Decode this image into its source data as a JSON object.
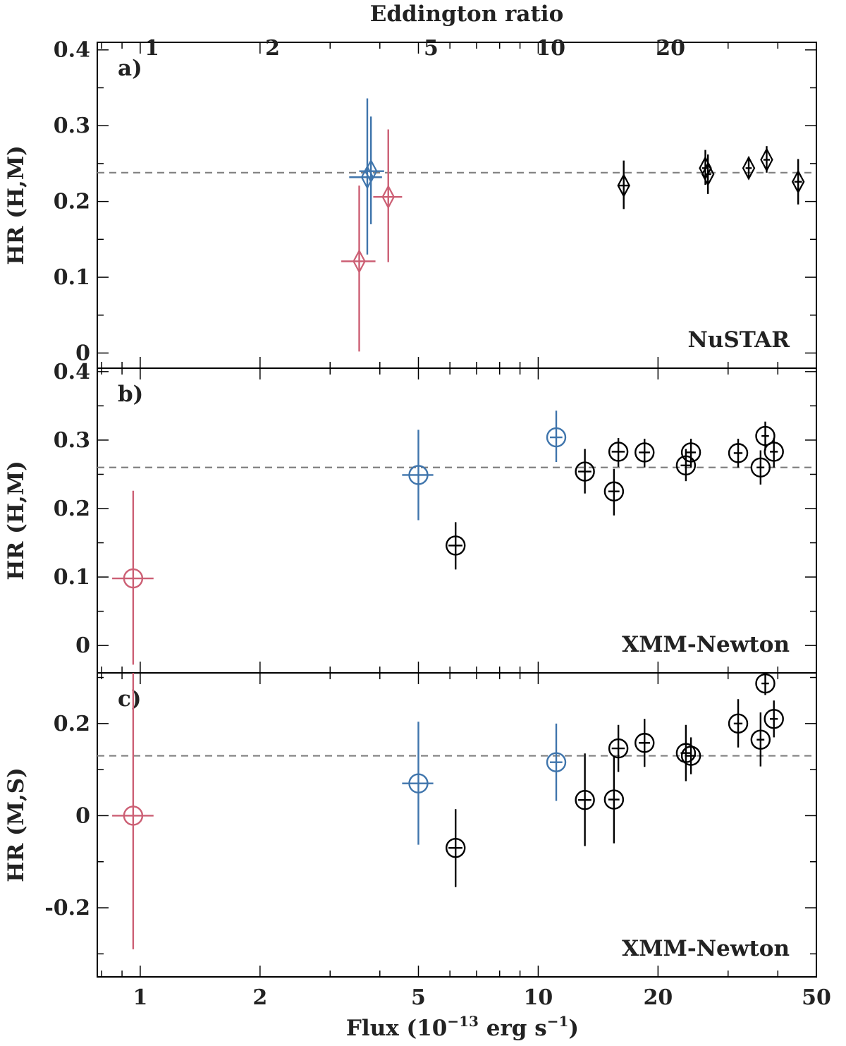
{
  "chart_data": {
    "type": "scatter",
    "x_axis": {
      "label": "Flux (10",
      "label_exp": "−13",
      "label_tail": " erg s",
      "label_tail_exp": "−1",
      "label_close": ")",
      "scale": "log",
      "range": [
        0.78,
        50
      ],
      "ticks": [
        1,
        2,
        5,
        10,
        20,
        50
      ],
      "tick_labels": [
        "1",
        "2",
        "5",
        "10",
        "20",
        "50"
      ]
    },
    "top_axis": {
      "label": "Eddington ratio",
      "scale": "log",
      "tick_positions_flux": [
        1.07,
        2.15,
        5.38,
        10.75,
        21.5
      ],
      "tick_labels": [
        "1",
        "2",
        "5",
        "10",
        "20"
      ]
    },
    "reference_lines": {
      "dashed_color": "#808080"
    },
    "colors": {
      "black": "#000000",
      "blue": "#3f75ac",
      "red": "#cc5f74"
    },
    "panels": [
      {
        "letter": "a)",
        "title": "NuSTAR",
        "ylabel": "HR (H,M)",
        "ylim": [
          -0.02,
          0.41
        ],
        "yticks": [
          0,
          0.1,
          0.2,
          0.3,
          0.4
        ],
        "ytick_labels": [
          "0",
          "0.1",
          "0.2",
          "0.3",
          "0.4"
        ],
        "ref_y": 0.238,
        "marker": "diamond",
        "points": [
          {
            "x": 3.55,
            "xlo": 3.2,
            "xhi": 3.9,
            "y": 0.121,
            "ylo": 0.002,
            "yhi": 0.221,
            "color": "red"
          },
          {
            "x": 4.2,
            "xlo": 3.85,
            "xhi": 4.55,
            "y": 0.206,
            "ylo": 0.12,
            "yhi": 0.295,
            "color": "red"
          },
          {
            "x": 3.72,
            "xlo": 3.35,
            "xhi": 4.05,
            "y": 0.232,
            "ylo": 0.13,
            "yhi": 0.336,
            "color": "blue"
          },
          {
            "x": 3.8,
            "xlo": 3.55,
            "xhi": 4.1,
            "y": 0.24,
            "ylo": 0.17,
            "yhi": 0.312,
            "color": "blue"
          },
          {
            "x": 16.4,
            "xlo": 15.9,
            "xhi": 16.9,
            "y": 0.221,
            "ylo": 0.19,
            "yhi": 0.254,
            "color": "black"
          },
          {
            "x": 26.3,
            "xlo": 25.8,
            "xhi": 26.8,
            "y": 0.244,
            "ylo": 0.222,
            "yhi": 0.268,
            "color": "black"
          },
          {
            "x": 26.7,
            "xlo": 26.2,
            "xhi": 27.2,
            "y": 0.236,
            "ylo": 0.21,
            "yhi": 0.262,
            "color": "black"
          },
          {
            "x": 33.8,
            "xlo": 33.2,
            "xhi": 34.4,
            "y": 0.244,
            "ylo": 0.23,
            "yhi": 0.259,
            "color": "black"
          },
          {
            "x": 37.5,
            "xlo": 36.8,
            "xhi": 38.2,
            "y": 0.255,
            "ylo": 0.238,
            "yhi": 0.273,
            "color": "black"
          },
          {
            "x": 45.0,
            "xlo": 44.0,
            "xhi": 46.0,
            "y": 0.226,
            "ylo": 0.196,
            "yhi": 0.256,
            "color": "black"
          }
        ]
      },
      {
        "letter": "b)",
        "title": "XMM-Newton",
        "ylabel": "HR (H,M)",
        "ylim": [
          -0.04,
          0.405
        ],
        "yticks": [
          0,
          0.1,
          0.2,
          0.3,
          0.4
        ],
        "ytick_labels": [
          "0",
          "0.1",
          "0.2",
          "0.3",
          "0.4"
        ],
        "ref_y": 0.26,
        "marker": "circle",
        "points": [
          {
            "x": 0.96,
            "xlo": 0.85,
            "xhi": 1.08,
            "y": 0.098,
            "ylo": -0.028,
            "yhi": 0.226,
            "color": "red"
          },
          {
            "x": 5.0,
            "xlo": 4.55,
            "xhi": 5.45,
            "y": 0.249,
            "ylo": 0.183,
            "yhi": 0.315,
            "color": "blue"
          },
          {
            "x": 11.1,
            "xlo": 10.7,
            "xhi": 11.5,
            "y": 0.304,
            "ylo": 0.268,
            "yhi": 0.343,
            "color": "blue"
          },
          {
            "x": 6.2,
            "xlo": 5.95,
            "xhi": 6.45,
            "y": 0.146,
            "ylo": 0.111,
            "yhi": 0.18,
            "color": "black"
          },
          {
            "x": 13.1,
            "xlo": 12.6,
            "xhi": 13.6,
            "y": 0.254,
            "ylo": 0.222,
            "yhi": 0.287,
            "color": "black"
          },
          {
            "x": 15.5,
            "xlo": 15.0,
            "xhi": 16.0,
            "y": 0.225,
            "ylo": 0.19,
            "yhi": 0.258,
            "color": "black"
          },
          {
            "x": 15.9,
            "xlo": 15.3,
            "xhi": 16.5,
            "y": 0.283,
            "ylo": 0.261,
            "yhi": 0.303,
            "color": "black"
          },
          {
            "x": 18.5,
            "xlo": 17.9,
            "xhi": 19.1,
            "y": 0.282,
            "ylo": 0.26,
            "yhi": 0.302,
            "color": "black"
          },
          {
            "x": 23.5,
            "xlo": 22.8,
            "xhi": 24.2,
            "y": 0.263,
            "ylo": 0.24,
            "yhi": 0.287,
            "color": "black"
          },
          {
            "x": 24.2,
            "xlo": 23.5,
            "xhi": 24.9,
            "y": 0.282,
            "ylo": 0.26,
            "yhi": 0.302,
            "color": "black"
          },
          {
            "x": 31.8,
            "xlo": 31.0,
            "xhi": 32.6,
            "y": 0.281,
            "ylo": 0.26,
            "yhi": 0.302,
            "color": "black"
          },
          {
            "x": 36.2,
            "xlo": 35.4,
            "xhi": 37.0,
            "y": 0.26,
            "ylo": 0.235,
            "yhi": 0.285,
            "color": "black"
          },
          {
            "x": 37.2,
            "xlo": 36.4,
            "xhi": 38.0,
            "y": 0.306,
            "ylo": 0.285,
            "yhi": 0.327,
            "color": "black"
          },
          {
            "x": 39.1,
            "xlo": 38.2,
            "xhi": 40.0,
            "y": 0.283,
            "ylo": 0.26,
            "yhi": 0.303,
            "color": "black"
          }
        ]
      },
      {
        "letter": "c)",
        "title": "XMM-Newton",
        "ylabel": "HR (M,S)",
        "ylim": [
          -0.35,
          0.31
        ],
        "yticks": [
          -0.2,
          0,
          0.2
        ],
        "ytick_labels": [
          "-0.2",
          "0",
          "0.2"
        ],
        "ref_y": 0.13,
        "marker": "circle",
        "points": [
          {
            "x": 0.96,
            "xlo": 0.85,
            "xhi": 1.08,
            "y": 0.0,
            "ylo": -0.29,
            "yhi": 0.31,
            "color": "red"
          },
          {
            "x": 5.0,
            "xlo": 4.55,
            "xhi": 5.45,
            "y": 0.07,
            "ylo": -0.063,
            "yhi": 0.204,
            "color": "blue"
          },
          {
            "x": 11.1,
            "xlo": 10.7,
            "xhi": 11.5,
            "y": 0.116,
            "ylo": 0.032,
            "yhi": 0.2,
            "color": "blue"
          },
          {
            "x": 6.2,
            "xlo": 5.95,
            "xhi": 6.45,
            "y": -0.07,
            "ylo": -0.155,
            "yhi": 0.014,
            "color": "black"
          },
          {
            "x": 13.1,
            "xlo": 12.6,
            "xhi": 13.6,
            "y": 0.034,
            "ylo": -0.066,
            "yhi": 0.135,
            "color": "black"
          },
          {
            "x": 15.5,
            "xlo": 15.0,
            "xhi": 16.0,
            "y": 0.035,
            "ylo": -0.06,
            "yhi": 0.13,
            "color": "black"
          },
          {
            "x": 15.9,
            "xlo": 15.3,
            "xhi": 16.5,
            "y": 0.146,
            "ylo": 0.095,
            "yhi": 0.197,
            "color": "black"
          },
          {
            "x": 18.5,
            "xlo": 17.9,
            "xhi": 19.1,
            "y": 0.158,
            "ylo": 0.106,
            "yhi": 0.21,
            "color": "black"
          },
          {
            "x": 23.5,
            "xlo": 22.8,
            "xhi": 24.2,
            "y": 0.136,
            "ylo": 0.075,
            "yhi": 0.197,
            "color": "black"
          },
          {
            "x": 24.2,
            "xlo": 23.5,
            "xhi": 24.9,
            "y": 0.13,
            "ylo": 0.09,
            "yhi": 0.17,
            "color": "black"
          },
          {
            "x": 31.8,
            "xlo": 31.0,
            "xhi": 32.6,
            "y": 0.2,
            "ylo": 0.148,
            "yhi": 0.253,
            "color": "black"
          },
          {
            "x": 36.2,
            "xlo": 35.4,
            "xhi": 37.0,
            "y": 0.165,
            "ylo": 0.107,
            "yhi": 0.224,
            "color": "black"
          },
          {
            "x": 37.2,
            "xlo": 36.4,
            "xhi": 38.0,
            "y": 0.287,
            "ylo": 0.262,
            "yhi": 0.31,
            "color": "black"
          },
          {
            "x": 39.1,
            "xlo": 38.2,
            "xhi": 40.0,
            "y": 0.21,
            "ylo": 0.17,
            "yhi": 0.25,
            "color": "black"
          }
        ]
      }
    ]
  }
}
